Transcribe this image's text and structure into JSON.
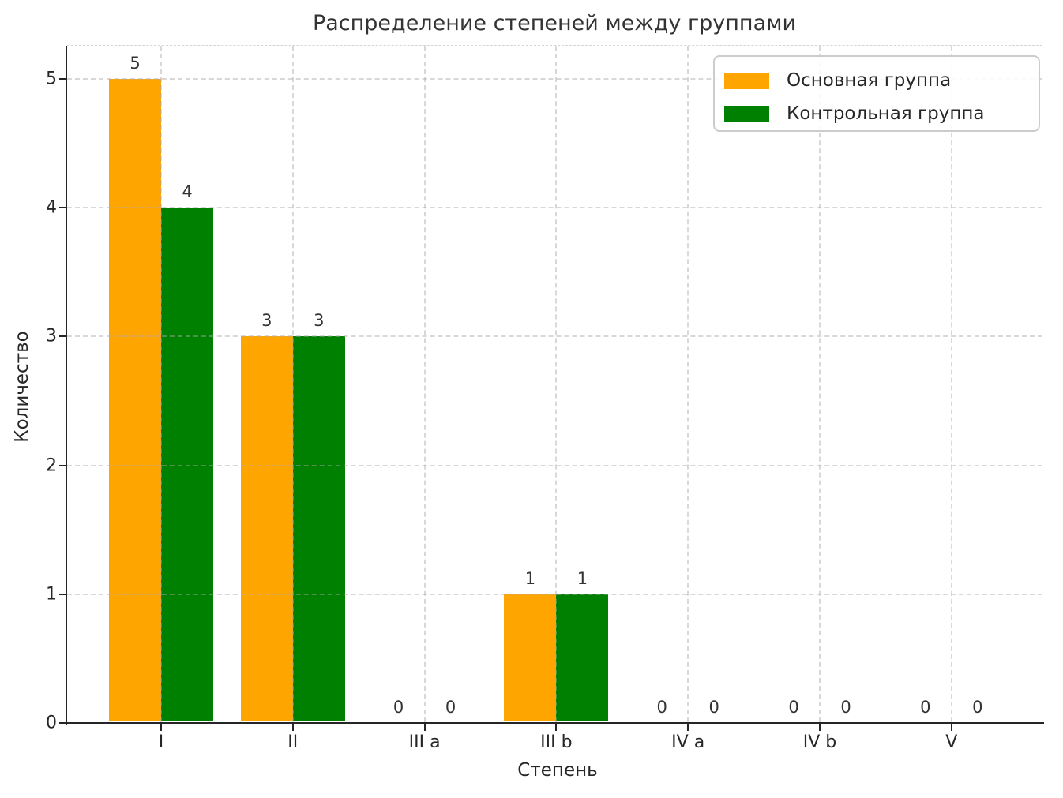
{
  "chart_data": {
    "type": "bar",
    "title": "Распределение степеней между группами",
    "xlabel": "Степень",
    "ylabel": "Количество",
    "categories": [
      "I",
      "II",
      "III a",
      "III b",
      "IV a",
      "IV b",
      "V"
    ],
    "series": [
      {
        "name": "Основная группа",
        "color": "#FFA500",
        "values": [
          5,
          3,
          0,
          1,
          0,
          0,
          0
        ]
      },
      {
        "name": "Контрольная группа",
        "color": "#008000",
        "values": [
          4,
          3,
          0,
          1,
          0,
          0,
          0
        ]
      }
    ],
    "ylim": [
      0,
      5.26
    ],
    "yticks": [
      0,
      1,
      2,
      3,
      4,
      5
    ],
    "grid": true,
    "grid_style": "dashed",
    "bar_value_labels": true,
    "legend_position": "upper right",
    "colors": {
      "text": "#262626",
      "title": "#333333",
      "grid": "#cccccc",
      "spine": "#262626",
      "background": "#ffffff"
    }
  }
}
